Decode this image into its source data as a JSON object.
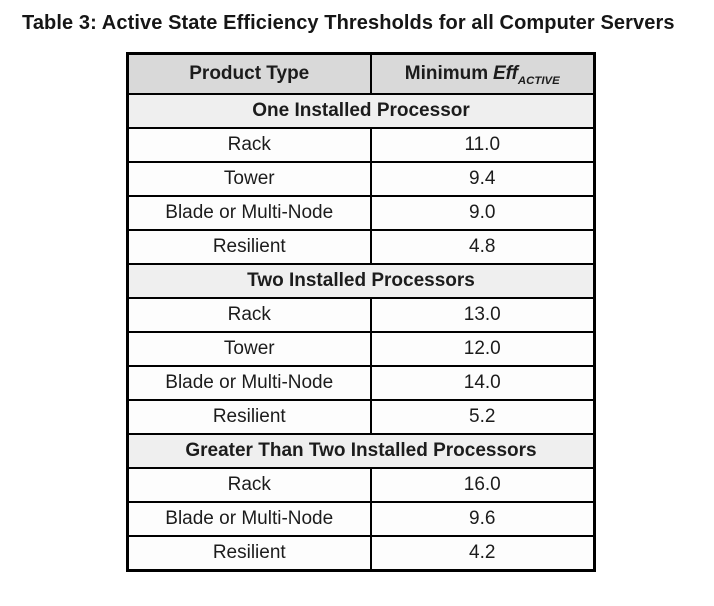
{
  "title": "Table 3: Active State Efficiency Thresholds for all Computer Servers",
  "colors": {
    "header_bg": "#d9d9d9",
    "section_bg": "#efefef",
    "data_row_bg": "#fdfdfd",
    "border": "#000000",
    "text": "#1c1c1c"
  },
  "table": {
    "header": {
      "product_type": "Product Type",
      "min_eff_prefix": "Minimum",
      "min_eff_symbol": "Eff",
      "min_eff_subscript": "ACTIVE"
    },
    "sections": [
      {
        "label": "One Installed Processor",
        "rows": [
          {
            "product_type": "Rack",
            "value": "11.0"
          },
          {
            "product_type": "Tower",
            "value": "9.4"
          },
          {
            "product_type": "Blade or Multi-Node",
            "value": "9.0"
          },
          {
            "product_type": "Resilient",
            "value": "4.8"
          }
        ]
      },
      {
        "label": "Two Installed Processors",
        "rows": [
          {
            "product_type": "Rack",
            "value": "13.0"
          },
          {
            "product_type": "Tower",
            "value": "12.0"
          },
          {
            "product_type": "Blade or Multi-Node",
            "value": "14.0"
          },
          {
            "product_type": "Resilient",
            "value": "5.2"
          }
        ]
      },
      {
        "label": "Greater Than Two Installed Processors",
        "rows": [
          {
            "product_type": "Rack",
            "value": "16.0"
          },
          {
            "product_type": "Blade or Multi-Node",
            "value": "9.6"
          },
          {
            "product_type": "Resilient",
            "value": "4.2"
          }
        ]
      }
    ]
  }
}
